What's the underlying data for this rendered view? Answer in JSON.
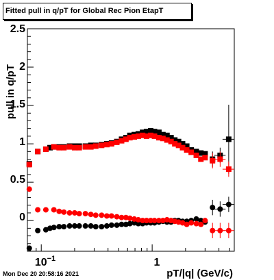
{
  "chart_data": {
    "type": "scatter",
    "title": "Fitted pull in q/pT for Global Rec Pion EtapT",
    "xlabel": "pT/|q| (GeV/c)",
    "ylabel": "pull in q/pT",
    "x_scale": "log",
    "xlim": [
      0.075,
      5.5
    ],
    "ylim": [
      -0.4,
      2.5
    ],
    "y_ticks": [
      "0",
      "0.5",
      "1",
      "1.5",
      "2",
      "2.5"
    ],
    "x_ticks": [
      "10^-1",
      "1"
    ],
    "colors": {
      "black_series": "#000000",
      "red_series": "#ff0000"
    },
    "series": [
      {
        "color": "black",
        "marker": "square",
        "points": [
          [
            0.078,
            0.74
          ],
          [
            0.093,
            0.9
          ],
          [
            0.11,
            0.93
          ],
          [
            0.12,
            0.95
          ],
          [
            0.13,
            0.96
          ],
          [
            0.145,
            0.96
          ],
          [
            0.16,
            0.96
          ],
          [
            0.18,
            0.97
          ],
          [
            0.2,
            0.97
          ],
          [
            0.22,
            0.97
          ],
          [
            0.25,
            0.97
          ],
          [
            0.28,
            0.98
          ],
          [
            0.31,
            0.98
          ],
          [
            0.35,
            0.99
          ],
          [
            0.39,
            1.0
          ],
          [
            0.43,
            1.01
          ],
          [
            0.48,
            1.03
          ],
          [
            0.53,
            1.06
          ],
          [
            0.58,
            1.08
          ],
          [
            0.63,
            1.11
          ],
          [
            0.69,
            1.12
          ],
          [
            0.75,
            1.13
          ],
          [
            0.82,
            1.15
          ],
          [
            0.89,
            1.16
          ],
          [
            0.97,
            1.17
          ],
          [
            1.05,
            1.16
          ],
          [
            1.15,
            1.15
          ],
          [
            1.25,
            1.12
          ],
          [
            1.36,
            1.11
          ],
          [
            1.48,
            1.08
          ],
          [
            1.6,
            1.05
          ],
          [
            1.73,
            1.03
          ],
          [
            1.88,
            1.0
          ],
          [
            2.05,
            0.97
          ],
          [
            2.25,
            0.92
          ],
          [
            2.5,
            0.9
          ],
          [
            2.75,
            0.88
          ],
          [
            3.0,
            0.87
          ],
          [
            3.5,
            0.8
          ],
          [
            4.1,
            0.85
          ],
          [
            4.9,
            1.06
          ]
        ]
      },
      {
        "color": "red",
        "marker": "square",
        "points": [
          [
            0.078,
            0.73
          ],
          [
            0.093,
            0.9
          ],
          [
            0.11,
            0.93
          ],
          [
            0.13,
            0.96
          ],
          [
            0.145,
            0.95
          ],
          [
            0.16,
            0.95
          ],
          [
            0.18,
            0.96
          ],
          [
            0.2,
            0.95
          ],
          [
            0.22,
            0.95
          ],
          [
            0.25,
            0.96
          ],
          [
            0.28,
            0.96
          ],
          [
            0.31,
            0.97
          ],
          [
            0.35,
            0.98
          ],
          [
            0.39,
            0.99
          ],
          [
            0.43,
            1.0
          ],
          [
            0.48,
            1.02
          ],
          [
            0.53,
            1.04
          ],
          [
            0.58,
            1.06
          ],
          [
            0.63,
            1.08
          ],
          [
            0.69,
            1.09
          ],
          [
            0.75,
            1.1
          ],
          [
            0.82,
            1.11
          ],
          [
            0.89,
            1.1
          ],
          [
            0.97,
            1.11
          ],
          [
            1.05,
            1.1
          ],
          [
            1.15,
            1.08
          ],
          [
            1.25,
            1.07
          ],
          [
            1.36,
            1.05
          ],
          [
            1.48,
            1.03
          ],
          [
            1.6,
            1.0
          ],
          [
            1.73,
            0.98
          ],
          [
            1.88,
            0.95
          ],
          [
            2.05,
            0.92
          ],
          [
            2.25,
            0.89
          ],
          [
            2.5,
            0.85
          ],
          [
            2.75,
            0.8
          ],
          [
            3.0,
            0.82
          ],
          [
            3.5,
            0.78
          ],
          [
            4.1,
            0.8
          ],
          [
            4.9,
            0.67
          ]
        ]
      },
      {
        "color": "black",
        "marker": "circle",
        "points": [
          [
            0.078,
            -0.36
          ],
          [
            0.093,
            -0.13
          ],
          [
            0.11,
            -0.12
          ],
          [
            0.12,
            -0.1
          ],
          [
            0.13,
            -0.09
          ],
          [
            0.145,
            -0.08
          ],
          [
            0.16,
            -0.08
          ],
          [
            0.18,
            -0.07
          ],
          [
            0.2,
            -0.07
          ],
          [
            0.22,
            -0.07
          ],
          [
            0.25,
            -0.07
          ],
          [
            0.28,
            -0.07
          ],
          [
            0.31,
            -0.08
          ],
          [
            0.35,
            -0.08
          ],
          [
            0.39,
            -0.07
          ],
          [
            0.43,
            -0.06
          ],
          [
            0.48,
            -0.06
          ],
          [
            0.53,
            -0.05
          ],
          [
            0.58,
            -0.05
          ],
          [
            0.63,
            -0.04
          ],
          [
            0.69,
            -0.03
          ],
          [
            0.75,
            -0.04
          ],
          [
            0.82,
            -0.04
          ],
          [
            0.89,
            -0.03
          ],
          [
            0.97,
            -0.03
          ],
          [
            1.05,
            -0.03
          ],
          [
            1.15,
            -0.02
          ],
          [
            1.25,
            -0.01
          ],
          [
            1.36,
            -0.02
          ],
          [
            1.48,
            -0.02
          ],
          [
            1.6,
            0.0
          ],
          [
            1.73,
            0.0
          ],
          [
            1.88,
            -0.01
          ],
          [
            2.05,
            -0.01
          ],
          [
            2.25,
            0.0
          ],
          [
            2.5,
            0.02
          ],
          [
            2.75,
            0.0
          ],
          [
            3.0,
            -0.02
          ],
          [
            3.5,
            0.17
          ],
          [
            4.1,
            0.15
          ],
          [
            4.9,
            0.21
          ]
        ]
      },
      {
        "color": "red",
        "marker": "circle",
        "points": [
          [
            0.078,
            0.41
          ],
          [
            0.093,
            0.14
          ],
          [
            0.11,
            0.14
          ],
          [
            0.13,
            0.14
          ],
          [
            0.145,
            0.12
          ],
          [
            0.16,
            0.11
          ],
          [
            0.18,
            0.1
          ],
          [
            0.2,
            0.1
          ],
          [
            0.22,
            0.09
          ],
          [
            0.25,
            0.09
          ],
          [
            0.28,
            0.08
          ],
          [
            0.31,
            0.07
          ],
          [
            0.35,
            0.07
          ],
          [
            0.39,
            0.06
          ],
          [
            0.43,
            0.06
          ],
          [
            0.48,
            0.05
          ],
          [
            0.53,
            0.04
          ],
          [
            0.58,
            0.04
          ],
          [
            0.63,
            0.03
          ],
          [
            0.69,
            0.02
          ],
          [
            0.75,
            0.01
          ],
          [
            0.82,
            0.0
          ],
          [
            0.89,
            0.0
          ],
          [
            0.97,
            0.0
          ],
          [
            1.05,
            0.0
          ],
          [
            1.15,
            0.0
          ],
          [
            1.25,
            0.0
          ],
          [
            1.36,
            0.01
          ],
          [
            1.48,
            0.0
          ],
          [
            1.6,
            -0.01
          ],
          [
            1.73,
            -0.02
          ],
          [
            1.88,
            -0.03
          ],
          [
            2.05,
            -0.05
          ],
          [
            2.25,
            -0.03
          ],
          [
            2.5,
            -0.04
          ],
          [
            2.75,
            -0.05
          ],
          [
            3.0,
            0.0
          ],
          [
            3.5,
            -0.13
          ],
          [
            4.1,
            -0.13
          ],
          [
            4.9,
            -0.13
          ]
        ]
      }
    ]
  },
  "timestamp": "Mon Dec 20 20:58:16 2021"
}
